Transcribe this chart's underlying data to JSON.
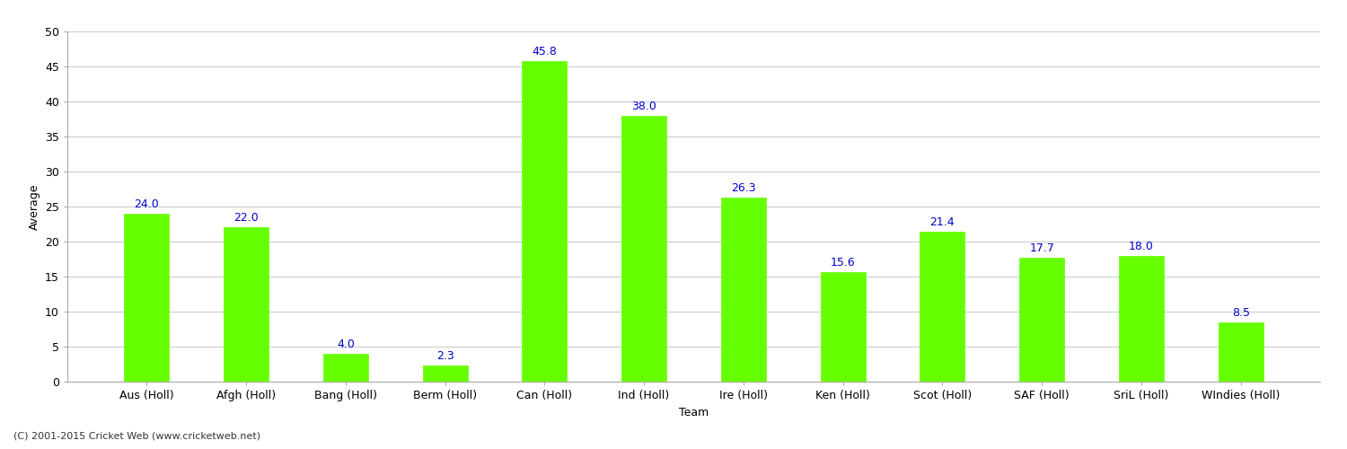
{
  "categories": [
    "Aus (Holl)",
    "Afgh (Holl)",
    "Bang (Holl)",
    "Berm (Holl)",
    "Can (Holl)",
    "Ind (Holl)",
    "Ire (Holl)",
    "Ken (Holl)",
    "Scot (Holl)",
    "SAF (Holl)",
    "SriL (Holl)",
    "WIndies (Holl)"
  ],
  "values": [
    24.0,
    22.0,
    4.0,
    2.3,
    45.8,
    38.0,
    26.3,
    15.6,
    21.4,
    17.7,
    18.0,
    8.5
  ],
  "bar_color": "#66ff00",
  "bar_edge_color": "#66ff00",
  "label_color": "#0000cc",
  "xlabel": "Team",
  "ylabel": "Average",
  "ylim": [
    0,
    50
  ],
  "yticks": [
    0,
    5,
    10,
    15,
    20,
    25,
    30,
    35,
    40,
    45,
    50
  ],
  "grid_color": "#cccccc",
  "background_color": "#ffffff",
  "footer": "(C) 2001-2015 Cricket Web (www.cricketweb.net)",
  "label_fontsize": 9,
  "tick_fontsize": 9,
  "footer_fontsize": 8,
  "value_fontsize": 9,
  "bar_width": 0.45
}
